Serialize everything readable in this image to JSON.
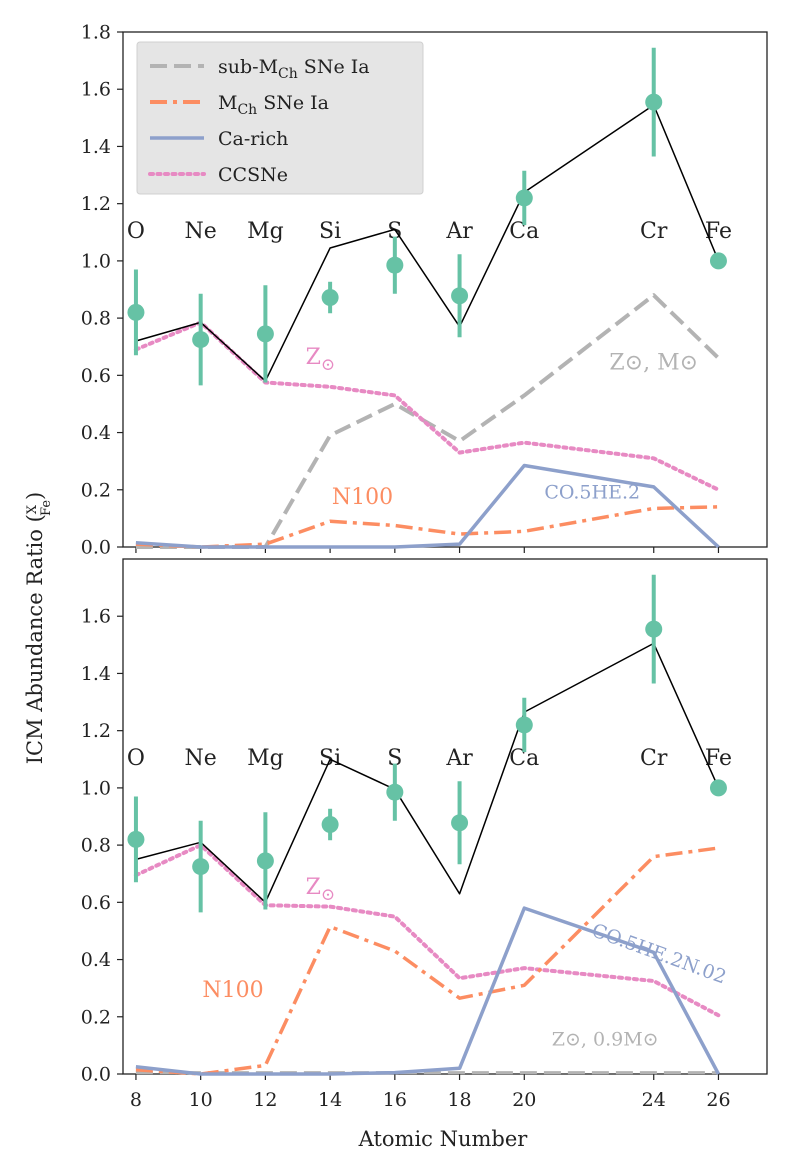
{
  "chart_data": [
    {
      "type": "line",
      "panel": "top",
      "xlabel": "",
      "ylabel": "",
      "xlim": [
        7.6,
        27.5
      ],
      "ylim": [
        0.0,
        1.8
      ],
      "yticks": [
        "0.0",
        "0.2",
        "0.4",
        "0.6",
        "0.8",
        "1.0",
        "1.2",
        "1.4",
        "1.6",
        "1.8"
      ],
      "legend": {
        "position": "top-left",
        "entries": [
          {
            "label": "sub-M",
            "sub": "Ch",
            "rest": " SNe Ia",
            "color": "#b3b3b3",
            "style": "dashed"
          },
          {
            "label": "M",
            "sub": "Ch",
            "rest": " SNe Ia",
            "color": "#fc8d62",
            "style": "dashdot"
          },
          {
            "label": "Ca-rich",
            "sub": "",
            "rest": "",
            "color": "#8da0cb",
            "style": "solid"
          },
          {
            "label": "CCSNe",
            "sub": "",
            "rest": "",
            "color": "#e78ac3",
            "style": "dotted"
          }
        ]
      },
      "element_labels": [
        {
          "x": 8,
          "label": "O"
        },
        {
          "x": 10,
          "label": "Ne"
        },
        {
          "x": 12,
          "label": "Mg"
        },
        {
          "x": 14,
          "label": "Si"
        },
        {
          "x": 16,
          "label": "S"
        },
        {
          "x": 18,
          "label": "Ar"
        },
        {
          "x": 20,
          "label": "Ca"
        },
        {
          "x": 24,
          "label": "Cr"
        },
        {
          "x": 26,
          "label": "Fe"
        }
      ],
      "annotations": [
        {
          "text": "Z",
          "suffix": "⊙",
          "x": 13.7,
          "y": 0.64,
          "color": "#e78ac3"
        },
        {
          "text": "Z⊙, M⊙",
          "x": 24.0,
          "y": 0.62,
          "color": "#b3b3b3"
        },
        {
          "text": "N100",
          "x": 15.0,
          "y": 0.15,
          "color": "#fc8d62"
        },
        {
          "text": "CO.5HE.2",
          "x": 22.1,
          "y": 0.17,
          "color": "#8da0cb"
        }
      ],
      "observed": {
        "color": "#66c2a5",
        "x": [
          8,
          10,
          12,
          14,
          16,
          18,
          20,
          24,
          26
        ],
        "y": [
          0.82,
          0.725,
          0.745,
          0.872,
          0.985,
          0.878,
          1.22,
          1.555,
          1.0
        ],
        "err": [
          0.15,
          0.16,
          0.17,
          0.055,
          0.1,
          0.145,
          0.095,
          0.19,
          0.0
        ]
      },
      "series": [
        {
          "name": "total",
          "color": "#000000",
          "style": "solid",
          "width": 1.5,
          "x": [
            8,
            10,
            12,
            14,
            16,
            18,
            20,
            24,
            26
          ],
          "y": [
            0.72,
            0.785,
            0.58,
            1.045,
            1.11,
            0.77,
            1.24,
            1.545,
            1.0
          ]
        },
        {
          "name": "sub-MCh SNe Ia",
          "color": "#b3b3b3",
          "style": "dashed",
          "width": 4,
          "x": [
            8,
            10,
            12,
            14,
            16,
            18,
            20,
            24,
            26
          ],
          "y": [
            0.0,
            0.0,
            0.0,
            0.39,
            0.5,
            0.37,
            0.53,
            0.88,
            0.66
          ]
        },
        {
          "name": "MCh SNe Ia",
          "color": "#fc8d62",
          "style": "dashdot",
          "width": 3.5,
          "x": [
            8,
            10,
            12,
            14,
            16,
            18,
            20,
            24,
            26
          ],
          "y": [
            0.01,
            0.0,
            0.01,
            0.09,
            0.075,
            0.045,
            0.055,
            0.135,
            0.14
          ]
        },
        {
          "name": "Ca-rich",
          "color": "#8da0cb",
          "style": "solid",
          "width": 3.5,
          "x": [
            8,
            10,
            12,
            14,
            16,
            18,
            20,
            24,
            26
          ],
          "y": [
            0.015,
            0.0,
            0.0,
            0.0,
            0.0,
            0.01,
            0.285,
            0.21,
            0.0
          ]
        },
        {
          "name": "CCSNe",
          "color": "#e78ac3",
          "style": "dotted",
          "width": 4,
          "x": [
            8,
            10,
            12,
            14,
            16,
            18,
            20,
            24,
            26
          ],
          "y": [
            0.69,
            0.785,
            0.575,
            0.56,
            0.53,
            0.33,
            0.365,
            0.31,
            0.2
          ]
        }
      ]
    },
    {
      "type": "line",
      "panel": "bottom",
      "xlabel": "Atomic Number",
      "ylabel": "ICM Abundance Ratio",
      "ylabel_frac_num": "X",
      "ylabel_frac_den": "Fe",
      "xlim": [
        7.6,
        27.5
      ],
      "ylim": [
        0.0,
        1.8
      ],
      "xticks": [
        "8",
        "10",
        "12",
        "14",
        "16",
        "18",
        "20",
        "24",
        "26"
      ],
      "yticks": [
        "0.0",
        "0.2",
        "0.4",
        "0.6",
        "0.8",
        "1.0",
        "1.2",
        "1.4",
        "1.6"
      ],
      "element_labels": [
        {
          "x": 8,
          "label": "O"
        },
        {
          "x": 10,
          "label": "Ne"
        },
        {
          "x": 12,
          "label": "Mg"
        },
        {
          "x": 14,
          "label": "Si"
        },
        {
          "x": 16,
          "label": "S"
        },
        {
          "x": 18,
          "label": "Ar"
        },
        {
          "x": 20,
          "label": "Ca"
        },
        {
          "x": 24,
          "label": "Cr"
        },
        {
          "x": 26,
          "label": "Fe"
        }
      ],
      "annotations": [
        {
          "text": "Z",
          "suffix": "⊙",
          "x": 13.7,
          "y": 0.63,
          "color": "#e78ac3"
        },
        {
          "text": "N100",
          "x": 11.0,
          "y": 0.27,
          "color": "#fc8d62"
        },
        {
          "text": "CO.5HE.2N.02",
          "x": 24.1,
          "y": 0.4,
          "color": "#8da0cb",
          "rotate": 20
        },
        {
          "text": "Z⊙, 0.9M⊙",
          "x": 22.5,
          "y": 0.1,
          "color": "#b3b3b3"
        }
      ],
      "observed": {
        "color": "#66c2a5",
        "x": [
          8,
          10,
          12,
          14,
          16,
          18,
          20,
          24,
          26
        ],
        "y": [
          0.82,
          0.725,
          0.745,
          0.872,
          0.985,
          0.878,
          1.22,
          1.555,
          1.0
        ],
        "err": [
          0.15,
          0.16,
          0.17,
          0.055,
          0.1,
          0.145,
          0.095,
          0.19,
          0.0
        ]
      },
      "series": [
        {
          "name": "total",
          "color": "#000000",
          "style": "solid",
          "width": 1.5,
          "x": [
            8,
            10,
            12,
            14,
            16,
            18,
            20,
            24,
            26
          ],
          "y": [
            0.75,
            0.81,
            0.6,
            1.1,
            0.995,
            0.63,
            1.265,
            1.505,
            1.0
          ]
        },
        {
          "name": "sub-MCh SNe Ia",
          "color": "#b3b3b3",
          "style": "dashed",
          "width": 3,
          "x": [
            8,
            10,
            12,
            14,
            16,
            18,
            20,
            24,
            26
          ],
          "y": [
            0.005,
            0.005,
            0.005,
            0.005,
            0.005,
            0.005,
            0.005,
            0.005,
            0.005
          ]
        },
        {
          "name": "MCh SNe Ia",
          "color": "#fc8d62",
          "style": "dashdot",
          "width": 3.5,
          "x": [
            8,
            10,
            12,
            14,
            16,
            18,
            20,
            24,
            26
          ],
          "y": [
            0.015,
            0.0,
            0.03,
            0.515,
            0.43,
            0.265,
            0.31,
            0.76,
            0.79
          ]
        },
        {
          "name": "Ca-rich",
          "color": "#8da0cb",
          "style": "solid",
          "width": 3.5,
          "x": [
            8,
            10,
            12,
            14,
            16,
            18,
            20,
            24,
            26
          ],
          "y": [
            0.025,
            0.0,
            0.0,
            0.0,
            0.005,
            0.02,
            0.58,
            0.425,
            0.0
          ]
        },
        {
          "name": "CCSNe",
          "color": "#e78ac3",
          "style": "dotted",
          "width": 4,
          "x": [
            8,
            10,
            12,
            14,
            16,
            18,
            20,
            24,
            26
          ],
          "y": [
            0.695,
            0.8,
            0.59,
            0.585,
            0.55,
            0.335,
            0.37,
            0.325,
            0.205
          ]
        }
      ]
    }
  ]
}
